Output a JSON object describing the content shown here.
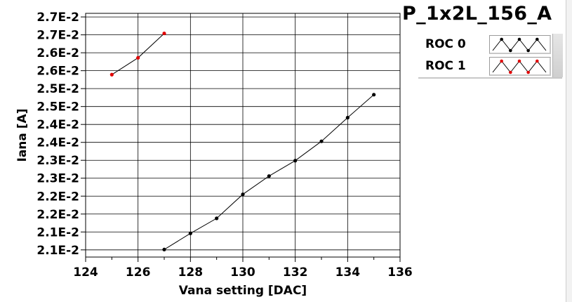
{
  "title": "P_1x2L_156_A",
  "legend": [
    {
      "label": "ROC 0",
      "color": "#000000"
    },
    {
      "label": "ROC 1",
      "color": "#e00000"
    }
  ],
  "chart_data": {
    "type": "line",
    "xlabel": "Vana setting [DAC]",
    "ylabel": "Iana [A]",
    "xlim": [
      124,
      136
    ],
    "ylim": [
      0.0203,
      0.0271
    ],
    "xticks": [
      124,
      126,
      128,
      130,
      132,
      134,
      136
    ],
    "yticks": [
      {
        "value": 0.0205,
        "label": "2.1E-2"
      },
      {
        "value": 0.021,
        "label": "2.1E-2"
      },
      {
        "value": 0.0215,
        "label": "2.2E-2"
      },
      {
        "value": 0.022,
        "label": "2.2E-2"
      },
      {
        "value": 0.0225,
        "label": "2.3E-2"
      },
      {
        "value": 0.023,
        "label": "2.3E-2"
      },
      {
        "value": 0.0235,
        "label": "2.4E-2"
      },
      {
        "value": 0.024,
        "label": "2.4E-2"
      },
      {
        "value": 0.0245,
        "label": "2.5E-2"
      },
      {
        "value": 0.025,
        "label": "2.5E-2"
      },
      {
        "value": 0.0255,
        "label": "2.6E-2"
      },
      {
        "value": 0.026,
        "label": "2.6E-2"
      },
      {
        "value": 0.0265,
        "label": "2.7E-2"
      },
      {
        "value": 0.027,
        "label": "2.7E-2"
      }
    ],
    "grid": true,
    "series": [
      {
        "name": "ROC 0",
        "color": "#000000",
        "x": [
          127,
          128,
          129,
          130,
          131,
          132,
          133,
          134,
          135
        ],
        "y": [
          0.02051,
          0.02096,
          0.02138,
          0.02205,
          0.02256,
          0.02299,
          0.02353,
          0.02419,
          0.02483
        ]
      },
      {
        "name": "ROC 1",
        "color": "#e00000",
        "x": [
          125,
          126,
          127
        ],
        "y": [
          0.02539,
          0.02586,
          0.02654
        ]
      }
    ]
  }
}
